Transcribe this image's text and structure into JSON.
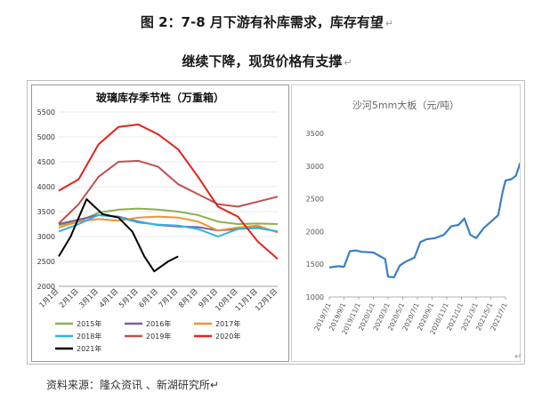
{
  "doc": {
    "title_line1": "图 2：7-8 月下游有补库需求，库存有望",
    "title_line2": "继续下降，现货价格有支撑",
    "para_mark": "↵",
    "source": "资料来源：隆众资讯  、新湖研究所↵"
  },
  "chart_data": [
    {
      "type": "line",
      "title": "玻璃库存季节性（万重箱）",
      "categories": [
        "1月1日",
        "2月1日",
        "3月1日",
        "4月1日",
        "5月1日",
        "6月1日",
        "7月1日",
        "8月1日",
        "9月1日",
        "10月1日",
        "11月1日",
        "12月1日"
      ],
      "ylim": [
        2000,
        5500
      ],
      "yticks": [
        2000,
        2500,
        3000,
        3500,
        4000,
        4500,
        5000,
        5500
      ],
      "legend_position": "bottom",
      "series": [
        {
          "name": "2015年",
          "color": "#8db04a",
          "points": [
            [
              0,
              3230
            ],
            [
              1,
              3300
            ],
            [
              2,
              3480
            ],
            [
              3,
              3540
            ],
            [
              4,
              3560
            ],
            [
              5,
              3540
            ],
            [
              6,
              3500
            ],
            [
              7,
              3430
            ],
            [
              8,
              3300
            ],
            [
              9,
              3250
            ],
            [
              10,
              3260
            ],
            [
              11,
              3250
            ]
          ]
        },
        {
          "name": "2016年",
          "color": "#7b5fa6",
          "points": [
            [
              0,
              3250
            ],
            [
              1,
              3340
            ],
            [
              2,
              3430
            ],
            [
              3,
              3400
            ],
            [
              4,
              3300
            ],
            [
              5,
              3230
            ],
            [
              6,
              3200
            ],
            [
              7,
              3190
            ],
            [
              8,
              3120
            ],
            [
              9,
              3150
            ],
            [
              10,
              3180
            ],
            [
              11,
              3100
            ]
          ]
        },
        {
          "name": "2017年",
          "color": "#f2922e",
          "points": [
            [
              0,
              3180
            ],
            [
              1,
              3300
            ],
            [
              2,
              3350
            ],
            [
              3,
              3320
            ],
            [
              4,
              3380
            ],
            [
              5,
              3400
            ],
            [
              6,
              3380
            ],
            [
              7,
              3300
            ],
            [
              8,
              3120
            ],
            [
              9,
              3180
            ],
            [
              10,
              3220
            ],
            [
              11,
              3080
            ]
          ]
        },
        {
          "name": "2018年",
          "color": "#2eb3e6",
          "points": [
            [
              0,
              3100
            ],
            [
              1,
              3250
            ],
            [
              2,
              3430
            ],
            [
              3,
              3390
            ],
            [
              4,
              3280
            ],
            [
              5,
              3240
            ],
            [
              6,
              3220
            ],
            [
              7,
              3150
            ],
            [
              8,
              3000
            ],
            [
              9,
              3150
            ],
            [
              10,
              3170
            ],
            [
              11,
              3100
            ]
          ]
        },
        {
          "name": "2019年",
          "color": "#c0504d",
          "points": [
            [
              0,
              3260
            ],
            [
              1,
              3650
            ],
            [
              2,
              4200
            ],
            [
              3,
              4500
            ],
            [
              4,
              4520
            ],
            [
              5,
              4400
            ],
            [
              6,
              4050
            ],
            [
              7,
              3850
            ],
            [
              8,
              3650
            ],
            [
              9,
              3600
            ],
            [
              10,
              3700
            ],
            [
              11,
              3800
            ]
          ]
        },
        {
          "name": "2020年",
          "color": "#e0241f",
          "points": [
            [
              0,
              3920
            ],
            [
              1,
              4150
            ],
            [
              2,
              4850
            ],
            [
              3,
              5200
            ],
            [
              4,
              5250
            ],
            [
              5,
              5050
            ],
            [
              6,
              4750
            ],
            [
              7,
              4200
            ],
            [
              8,
              3600
            ],
            [
              9,
              3400
            ],
            [
              10,
              2900
            ],
            [
              11,
              2550
            ]
          ]
        },
        {
          "name": "2021年",
          "color": "#000000",
          "points": [
            [
              0,
              2600
            ],
            [
              0.6,
              3000
            ],
            [
              1.4,
              3750
            ],
            [
              2.2,
              3450
            ],
            [
              3,
              3380
            ],
            [
              3.7,
              3100
            ],
            [
              4.3,
              2600
            ],
            [
              4.8,
              2300
            ],
            [
              5.5,
              2500
            ],
            [
              6,
              2600
            ]
          ]
        }
      ]
    },
    {
      "type": "line",
      "title": "沙河5mm大板（元/吨）",
      "categories": [
        "2019/7/1",
        "2019/9/1",
        "2019/11/1",
        "2020/1/1",
        "2020/3/1",
        "2020/5/1",
        "2020/7/1",
        "2020/9/1",
        "2020/11/1",
        "2021/1/1",
        "2021/3/1",
        "2021/5/1",
        "2021/7/1"
      ],
      "ylim": [
        1000,
        3500
      ],
      "yticks": [
        1000,
        1500,
        2000,
        2500,
        3000,
        3500
      ],
      "series": [
        {
          "name": "沙河5mm大板",
          "color": "#3b7fc4",
          "points": [
            [
              0,
              1450
            ],
            [
              0.6,
              1470
            ],
            [
              1,
              1460
            ],
            [
              1.4,
              1700
            ],
            [
              1.8,
              1710
            ],
            [
              2.2,
              1690
            ],
            [
              3,
              1680
            ],
            [
              3.8,
              1580
            ],
            [
              4,
              1310
            ],
            [
              4.4,
              1300
            ],
            [
              4.8,
              1480
            ],
            [
              5.2,
              1540
            ],
            [
              5.8,
              1600
            ],
            [
              6.2,
              1840
            ],
            [
              6.6,
              1880
            ],
            [
              7.2,
              1900
            ],
            [
              7.8,
              1950
            ],
            [
              8.3,
              2080
            ],
            [
              8.8,
              2100
            ],
            [
              9.2,
              2200
            ],
            [
              9.6,
              1950
            ],
            [
              10,
              1900
            ],
            [
              10.5,
              2050
            ],
            [
              11,
              2150
            ],
            [
              11.5,
              2250
            ],
            [
              11.8,
              2600
            ],
            [
              12,
              2780
            ],
            [
              12.4,
              2800
            ],
            [
              12.7,
              2850
            ],
            [
              13,
              3050
            ]
          ]
        }
      ]
    }
  ]
}
